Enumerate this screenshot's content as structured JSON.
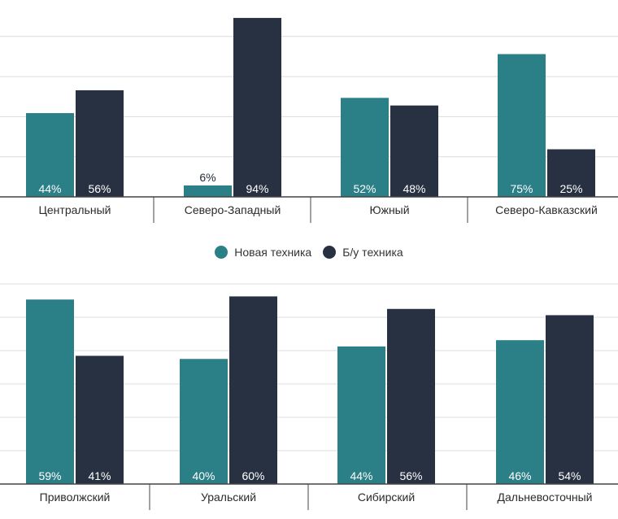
{
  "colors": {
    "new": "#2b7f87",
    "used": "#283142",
    "grid": "#dcdcdc",
    "axis": "#444444"
  },
  "legend": {
    "new_label": "Новая техника",
    "used_label": "Б/у техника"
  },
  "chart_data": [
    {
      "type": "bar",
      "categories": [
        "Центральный",
        "Северо-Западный",
        "Южный",
        "Северо-Кавказский"
      ],
      "series": [
        {
          "name": "Новая техника",
          "values": [
            44,
            6,
            52,
            75
          ]
        },
        {
          "name": "Б/у техника",
          "values": [
            56,
            94,
            48,
            25
          ]
        }
      ],
      "value_labels": [
        [
          "44%",
          "6%",
          "52%",
          "75%"
        ],
        [
          "56%",
          "94%",
          "48%",
          "25%"
        ]
      ],
      "ylim": [
        0,
        100
      ],
      "grid": true
    },
    {
      "type": "bar",
      "categories": [
        "Приволжский",
        "Уральский",
        "Сибирский",
        "Дальневосточный"
      ],
      "series": [
        {
          "name": "Новая техника",
          "values": [
            59,
            40,
            44,
            46
          ]
        },
        {
          "name": "Б/у техника",
          "values": [
            41,
            60,
            56,
            54
          ]
        }
      ],
      "value_labels": [
        [
          "59%",
          "40%",
          "44%",
          "46%"
        ],
        [
          "41%",
          "60%",
          "56%",
          "54%"
        ]
      ],
      "ylim": [
        0,
        64
      ],
      "grid": true
    }
  ]
}
